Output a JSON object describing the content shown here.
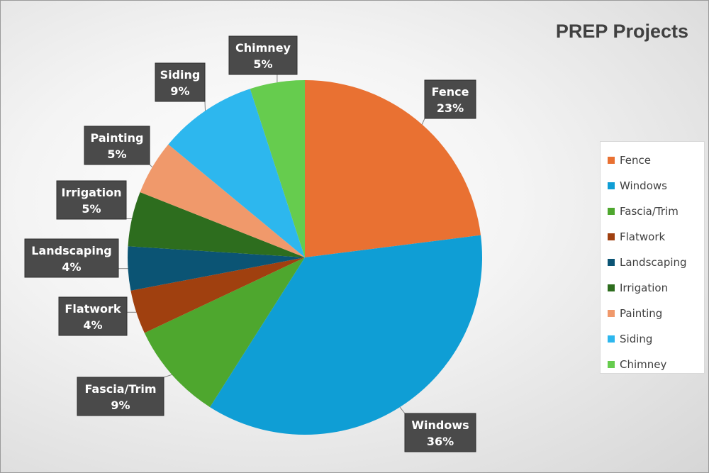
{
  "chart_data": {
    "type": "pie",
    "title": "PREP Projects",
    "categories": [
      "Fence",
      "Windows",
      "Fascia/Trim",
      "Flatwork",
      "Landscaping",
      "Irrigation",
      "Painting",
      "Siding",
      "Chimney"
    ],
    "values": [
      23,
      36,
      9,
      4,
      4,
      5,
      5,
      9,
      5
    ],
    "value_labels": [
      "23%",
      "36%",
      "9%",
      "4%",
      "4%",
      "5%",
      "5%",
      "9%",
      "5%"
    ],
    "colors": [
      "#E97132",
      "#0F9ED5",
      "#4EA72E",
      "#A0400F",
      "#0B5474",
      "#2D6D1E",
      "#F0996B",
      "#2DB7EE",
      "#66CC4E"
    ],
    "legend_position": "right",
    "start_angle_deg": 0,
    "direction": "clockwise"
  }
}
